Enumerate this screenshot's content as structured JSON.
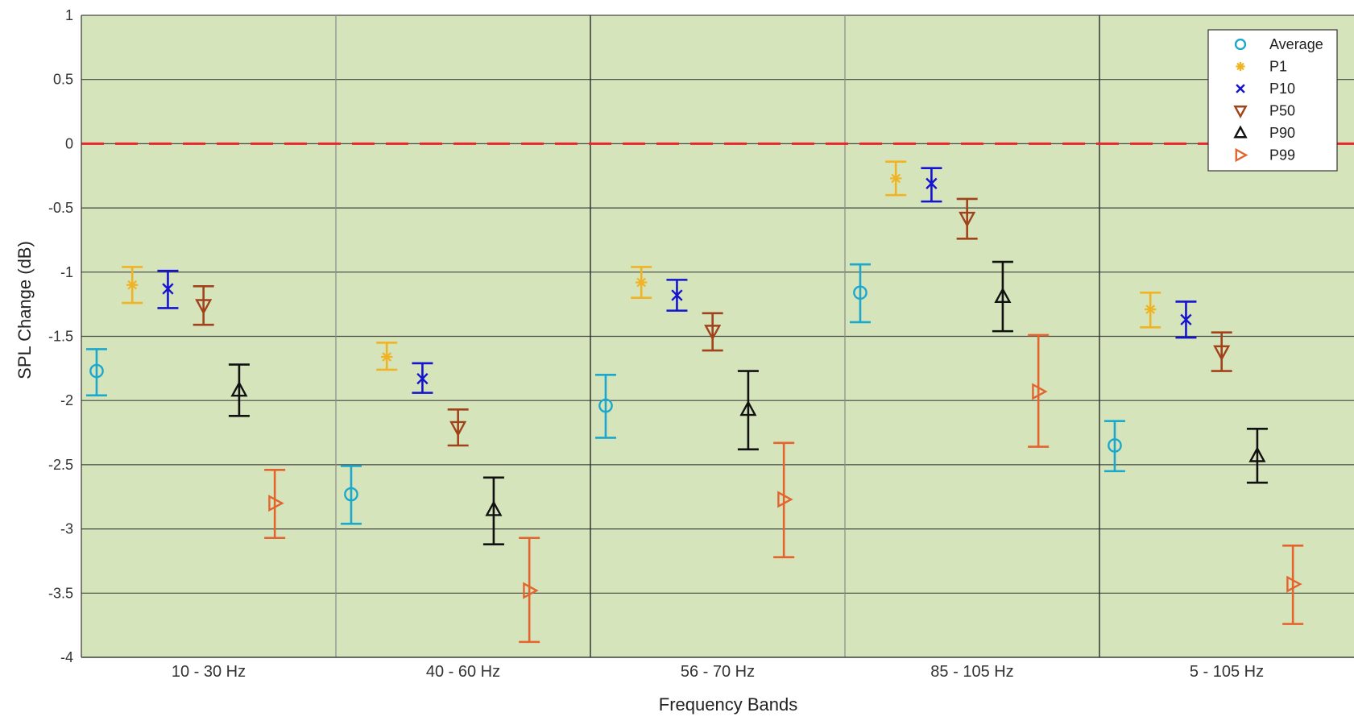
{
  "chart_data": {
    "type": "scatter",
    "xlabel": "Frequency Bands",
    "ylabel": "SPL Change (dB)",
    "ylim": [
      -4,
      1
    ],
    "yticks": [
      "-4",
      "-3.5",
      "-3",
      "-2.5",
      "-2",
      "-1.5",
      "-1",
      "-0.5",
      "0",
      "0.5",
      "1"
    ],
    "categories": [
      "10 - 30 Hz",
      "40 - 60 Hz",
      "56 - 70 Hz",
      "85 - 105 Hz",
      "5 - 105 Hz"
    ],
    "reference_line": {
      "y": 0,
      "color": "#e8262b",
      "style": "dashed"
    },
    "grid": true,
    "background": "#d6e4bc",
    "legend_position": "top-right",
    "series": [
      {
        "name": "Average",
        "marker": "circle",
        "color": "#1ba8cc",
        "values": [
          -1.77,
          -2.73,
          -2.04,
          -1.16,
          -2.35
        ],
        "err_low": [
          -1.96,
          -2.96,
          -2.29,
          -1.39,
          -2.55
        ],
        "err_high": [
          -1.6,
          -2.51,
          -1.8,
          -0.94,
          -2.16
        ]
      },
      {
        "name": "P1",
        "marker": "asterisk",
        "color": "#f0b323",
        "values": [
          -1.1,
          -1.66,
          -1.08,
          -0.27,
          -1.29
        ],
        "err_low": [
          -1.24,
          -1.76,
          -1.2,
          -0.4,
          -1.43
        ],
        "err_high": [
          -0.96,
          -1.55,
          -0.96,
          -0.14,
          -1.16
        ]
      },
      {
        "name": "P10",
        "marker": "x",
        "color": "#1414d0",
        "values": [
          -1.13,
          -1.83,
          -1.18,
          -0.31,
          -1.37
        ],
        "err_low": [
          -1.28,
          -1.94,
          -1.3,
          -0.45,
          -1.51
        ],
        "err_high": [
          -0.99,
          -1.71,
          -1.06,
          -0.19,
          -1.23
        ]
      },
      {
        "name": "P50",
        "marker": "triangle-down",
        "color": "#a0421a",
        "values": [
          -1.26,
          -2.21,
          -1.46,
          -0.58,
          -1.62
        ],
        "err_low": [
          -1.41,
          -2.35,
          -1.61,
          -0.74,
          -1.77
        ],
        "err_high": [
          -1.11,
          -2.07,
          -1.32,
          -0.43,
          -1.47
        ]
      },
      {
        "name": "P90",
        "marker": "triangle-up",
        "color": "#111111",
        "values": [
          -1.92,
          -2.85,
          -2.07,
          -1.19,
          -2.43
        ],
        "err_low": [
          -2.12,
          -3.12,
          -2.38,
          -1.46,
          -2.64
        ],
        "err_high": [
          -1.72,
          -2.6,
          -1.77,
          -0.92,
          -2.22
        ]
      },
      {
        "name": "P99",
        "marker": "triangle-right",
        "color": "#e3642e",
        "values": [
          -2.8,
          -3.48,
          -2.77,
          -1.93,
          -3.43
        ],
        "err_low": [
          -3.07,
          -3.88,
          -3.22,
          -2.36,
          -3.74
        ],
        "err_high": [
          -2.54,
          -3.07,
          -2.33,
          -1.49,
          -3.13
        ]
      }
    ]
  }
}
